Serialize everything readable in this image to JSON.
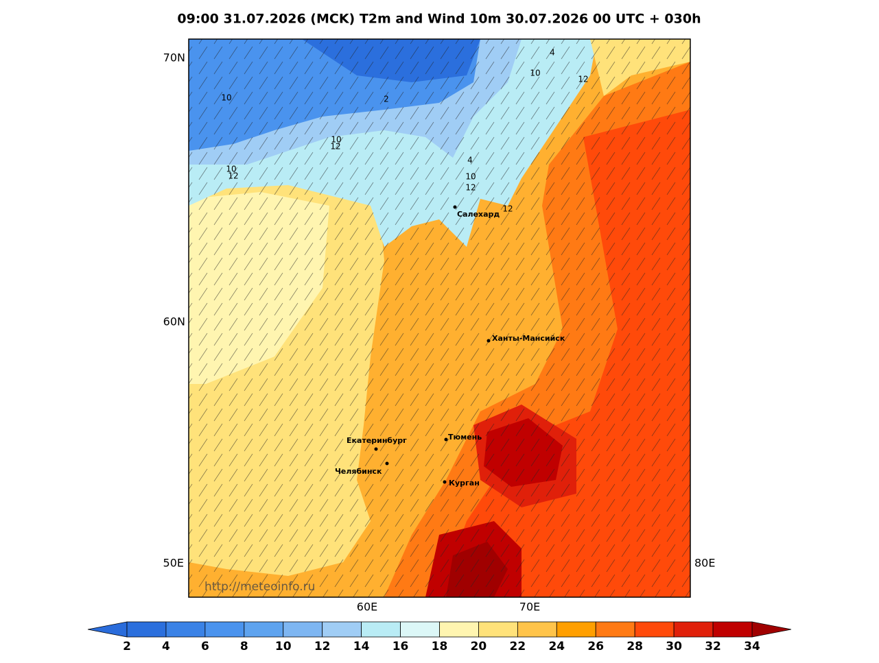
{
  "title": "09:00 31.07.2026 (MCK) T2m and Wind 10m 30.07.2026 00 UTC + 030h",
  "map": {
    "lat_labels": [
      "70N",
      "60N"
    ],
    "lon_labels_left_right": [
      "50E",
      "80E"
    ],
    "lon_labels_bottom": [
      "60E",
      "70E"
    ],
    "cities": [
      "Салехард",
      "Ханты-Мансийск",
      "Екатеринбург",
      "Тюмень",
      "Челябинск",
      "Курган"
    ],
    "contour_labels": [
      10,
      2,
      10,
      12,
      10,
      12,
      4,
      10,
      12,
      12,
      4,
      10,
      12
    ],
    "watermark": "http://meteoinfo.ru"
  },
  "colorbar": {
    "ticks": [
      2,
      4,
      6,
      8,
      10,
      12,
      14,
      16,
      18,
      20,
      22,
      24,
      26,
      28,
      30,
      32,
      34
    ],
    "colors": [
      "#2a6cdb",
      "#2b6fdd",
      "#3a82e6",
      "#4a93ee",
      "#5ea3ef",
      "#7eb6f2",
      "#a0cdf5",
      "#b9ecf5",
      "#dcf7f7",
      "#fff5b0",
      "#ffe27a",
      "#ffc44a",
      "#ff9f00",
      "#ff7a14",
      "#ff4a0a",
      "#e0200a",
      "#c00000",
      "#a00000"
    ]
  }
}
